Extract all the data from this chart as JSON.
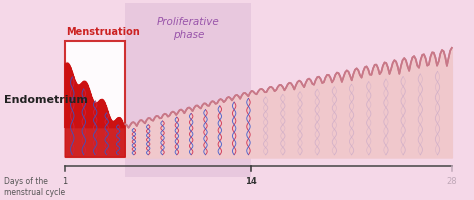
{
  "bg_color": "#f5d8e8",
  "prolif_box_color": "#e8c8de",
  "prolif_label": "Proliferative\nphase",
  "prolif_label_color": "#9955aa",
  "menstruation_label": "Menstruation",
  "menstruation_box_color": "#cc2222",
  "endometrium_label": "Endometrium",
  "days_label": "Days of the\nmenstrual cycle",
  "tick1": "1",
  "tick14": "14",
  "tick28": "28",
  "tick14_color": "#333333",
  "tick28_color": "#c0a8b8",
  "axis_color": "#444444",
  "endometrium_fill": "#f0c8cc",
  "endometrium_outline": "#c87888",
  "blood_color": "#cc1111",
  "gland_red": "#cc2244",
  "gland_blue": "#3355cc",
  "gland_purple": "#9955aa",
  "gland_light": "#c8a8c8",
  "post14_fill": "#f0d0d8",
  "post14_outline": "#d0a8b8"
}
